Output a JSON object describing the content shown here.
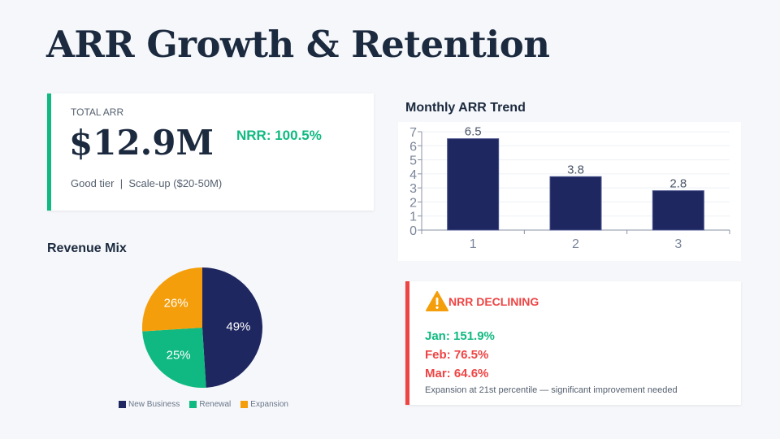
{
  "title": "ARR Growth & Retention",
  "kpi": {
    "label": "TOTAL ARR",
    "value": "$12.9M",
    "nrr": "NRR: 100.5%",
    "tier": "Good tier",
    "separator": "|",
    "segment": "Scale-up ($20-50M)",
    "accent": "#10b981"
  },
  "chart_data": [
    {
      "type": "bar",
      "title": "Monthly ARR Trend",
      "categories": [
        "1",
        "2",
        "3"
      ],
      "values": [
        6.5,
        3.8,
        2.8
      ],
      "data_labels": [
        "6.5",
        "3.8",
        "2.8"
      ],
      "ylim": [
        0,
        7
      ],
      "yticks": [
        "0",
        "1",
        "2",
        "3",
        "4",
        "5",
        "6",
        "7"
      ],
      "grid": true,
      "color": "#1f2760"
    },
    {
      "type": "pie",
      "title": "Revenue Mix",
      "categories": [
        "New Business",
        "Renewal",
        "Expansion"
      ],
      "values": [
        49,
        25,
        26
      ],
      "data_labels": [
        "49%",
        "25%",
        "26%"
      ],
      "colors": [
        "#1f2760",
        "#10b981",
        "#f59e0b"
      ],
      "legend": "bottom"
    }
  ],
  "alert": {
    "icon": "warning-icon",
    "title": "NRR DECLINING",
    "lines": [
      {
        "text": "Jan: 151.9%",
        "color": "#10b981"
      },
      {
        "text": "Feb: 76.5%",
        "color": "#ef4444"
      },
      {
        "text": "Mar: 64.6%",
        "color": "#ef4444"
      }
    ],
    "note": "Expansion at 21st percentile — significant improvement needed"
  }
}
